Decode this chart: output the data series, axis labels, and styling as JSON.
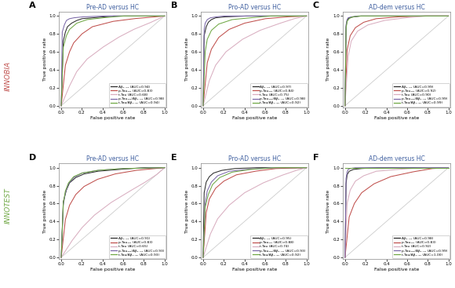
{
  "panels": [
    {
      "label": "A",
      "title": "Pre-AD versus HC",
      "row": 0,
      "col": 0,
      "curves": [
        {
          "name": "Aβ₁₋₄₂ (AUC=0.94)",
          "color": "#2b2b2b",
          "auc": 0.94,
          "fpr": [
            0,
            0.02,
            0.04,
            0.06,
            0.08,
            0.1,
            0.15,
            0.2,
            0.3,
            0.5,
            0.7,
            1.0
          ],
          "tpr": [
            0,
            0.72,
            0.82,
            0.88,
            0.9,
            0.92,
            0.95,
            0.97,
            0.98,
            1.0,
            1.0,
            1.0
          ]
        },
        {
          "name": "p-Tau₁₈₁ (AUC=0.83)",
          "color": "#c0504d",
          "auc": 0.83,
          "fpr": [
            0,
            0.04,
            0.08,
            0.12,
            0.2,
            0.3,
            0.5,
            0.7,
            0.9,
            1.0
          ],
          "tpr": [
            0,
            0.45,
            0.6,
            0.7,
            0.8,
            0.88,
            0.94,
            0.97,
            0.99,
            1.0
          ]
        },
        {
          "name": "t-Tau (AUC=0.68)",
          "color": "#d9aec0",
          "auc": 0.68,
          "fpr": [
            0,
            0.08,
            0.15,
            0.25,
            0.4,
            0.55,
            0.7,
            0.85,
            1.0
          ],
          "tpr": [
            0,
            0.22,
            0.38,
            0.52,
            0.65,
            0.76,
            0.85,
            0.92,
            1.0
          ]
        },
        {
          "name": "p-Tau₁₈₁/Aβ₁₋₄₂ (AUC=0.98)",
          "color": "#7b68a8",
          "auc": 0.98,
          "fpr": [
            0,
            0.01,
            0.03,
            0.05,
            0.08,
            0.12,
            0.2,
            0.4,
            1.0
          ],
          "tpr": [
            0,
            0.82,
            0.9,
            0.95,
            0.97,
            0.98,
            0.99,
            1.0,
            1.0
          ]
        },
        {
          "name": "t-Tau/Aβ₁₋₄₂ (AUC=0.94)",
          "color": "#70a845",
          "auc": 0.94,
          "fpr": [
            0,
            0.02,
            0.05,
            0.08,
            0.15,
            0.25,
            0.4,
            0.6,
            1.0
          ],
          "tpr": [
            0,
            0.65,
            0.78,
            0.85,
            0.92,
            0.96,
            0.98,
            1.0,
            1.0
          ]
        }
      ]
    },
    {
      "label": "B",
      "title": "Pro-AD versus HC",
      "row": 0,
      "col": 1,
      "curves": [
        {
          "name": "Aβ₁₋₄₂ (AUC=0.97)",
          "color": "#2b2b2b",
          "auc": 0.97,
          "fpr": [
            0,
            0.01,
            0.03,
            0.05,
            0.08,
            0.12,
            0.2,
            0.4,
            1.0
          ],
          "tpr": [
            0,
            0.78,
            0.88,
            0.93,
            0.96,
            0.98,
            0.99,
            1.0,
            1.0
          ]
        },
        {
          "name": "p-Tau₁₈₁ (AUC=0.84)",
          "color": "#c0504d",
          "auc": 0.84,
          "fpr": [
            0,
            0.04,
            0.08,
            0.15,
            0.25,
            0.4,
            0.6,
            0.8,
            1.0
          ],
          "tpr": [
            0,
            0.48,
            0.63,
            0.76,
            0.85,
            0.92,
            0.97,
            0.99,
            1.0
          ]
        },
        {
          "name": "t-Tau (AUC=0.75)",
          "color": "#d9aec0",
          "auc": 0.75,
          "fpr": [
            0,
            0.06,
            0.12,
            0.22,
            0.38,
            0.55,
            0.72,
            0.88,
            1.0
          ],
          "tpr": [
            0,
            0.28,
            0.45,
            0.6,
            0.74,
            0.84,
            0.91,
            0.97,
            1.0
          ]
        },
        {
          "name": "p-Tau₁₈₁/Aβ₁₋₄₂ (AUC=0.98)",
          "color": "#7b68a8",
          "auc": 0.98,
          "fpr": [
            0,
            0.01,
            0.02,
            0.04,
            0.07,
            0.12,
            0.2,
            0.4,
            1.0
          ],
          "tpr": [
            0,
            0.85,
            0.92,
            0.96,
            0.98,
            0.99,
            1.0,
            1.0,
            1.0
          ]
        },
        {
          "name": "t-Tau/Aβ₁₋₄₂ (AUC=0.92)",
          "color": "#70a845",
          "auc": 0.92,
          "fpr": [
            0,
            0.02,
            0.04,
            0.08,
            0.15,
            0.28,
            0.45,
            0.65,
            1.0
          ],
          "tpr": [
            0,
            0.6,
            0.74,
            0.84,
            0.91,
            0.96,
            0.98,
            1.0,
            1.0
          ]
        }
      ]
    },
    {
      "label": "C",
      "title": "AD-dem versus HC",
      "row": 0,
      "col": 2,
      "curves": [
        {
          "name": "Aβ₁₋₄₂ (AUC=0.99)",
          "color": "#2b2b2b",
          "auc": 0.99,
          "fpr": [
            0,
            0.01,
            0.02,
            0.04,
            0.08,
            0.15,
            0.3,
            1.0
          ],
          "tpr": [
            0,
            0.88,
            0.95,
            0.98,
            0.99,
            1.0,
            1.0,
            1.0
          ]
        },
        {
          "name": "p-Tau₁₈₁ (AUC=0.92)",
          "color": "#c0504d",
          "auc": 0.92,
          "fpr": [
            0,
            0.02,
            0.05,
            0.1,
            0.18,
            0.3,
            0.5,
            0.75,
            1.0
          ],
          "tpr": [
            0,
            0.62,
            0.78,
            0.87,
            0.93,
            0.97,
            0.99,
            1.0,
            1.0
          ]
        },
        {
          "name": "t-Tau (AUC=0.90)",
          "color": "#d9aec0",
          "auc": 0.9,
          "fpr": [
            0,
            0.03,
            0.06,
            0.12,
            0.22,
            0.38,
            0.58,
            0.78,
            1.0
          ],
          "tpr": [
            0,
            0.55,
            0.72,
            0.83,
            0.9,
            0.95,
            0.98,
            1.0,
            1.0
          ]
        },
        {
          "name": "p-Tau₁₈₁/Aβ₁₋₄₂ (AUC=0.99)",
          "color": "#7b68a8",
          "auc": 0.99,
          "fpr": [
            0,
            0.01,
            0.02,
            0.03,
            0.06,
            0.12,
            0.25,
            1.0
          ],
          "tpr": [
            0,
            0.9,
            0.96,
            0.98,
            0.99,
            1.0,
            1.0,
            1.0
          ]
        },
        {
          "name": "t-Tau/Aβ₁₋₄₂ (AUC=0.99)",
          "color": "#70a845",
          "auc": 0.99,
          "fpr": [
            0,
            0.01,
            0.02,
            0.04,
            0.07,
            0.14,
            0.28,
            1.0
          ],
          "tpr": [
            0,
            0.86,
            0.94,
            0.97,
            0.99,
            1.0,
            1.0,
            1.0
          ]
        }
      ]
    },
    {
      "label": "D",
      "title": "Pre-AD versus HC",
      "row": 1,
      "col": 0,
      "curves": [
        {
          "name": "Aβ₁₋₄₂ (AUC=0.91)",
          "color": "#2b2b2b",
          "auc": 0.91,
          "fpr": [
            0,
            0.02,
            0.05,
            0.08,
            0.14,
            0.22,
            0.35,
            0.55,
            0.8,
            1.0
          ],
          "tpr": [
            0,
            0.62,
            0.75,
            0.83,
            0.89,
            0.93,
            0.96,
            0.98,
            1.0,
            1.0
          ]
        },
        {
          "name": "p-Tau₁₈₁ (AUC=0.83)",
          "color": "#c0504d",
          "auc": 0.83,
          "fpr": [
            0,
            0.04,
            0.08,
            0.14,
            0.22,
            0.35,
            0.52,
            0.72,
            0.9,
            1.0
          ],
          "tpr": [
            0,
            0.42,
            0.58,
            0.7,
            0.79,
            0.87,
            0.93,
            0.97,
            0.99,
            1.0
          ]
        },
        {
          "name": "t-Tau (AUC=0.65)",
          "color": "#d9aec0",
          "auc": 0.65,
          "fpr": [
            0,
            0.1,
            0.2,
            0.32,
            0.48,
            0.65,
            0.8,
            0.92,
            1.0
          ],
          "tpr": [
            0,
            0.18,
            0.33,
            0.47,
            0.61,
            0.73,
            0.83,
            0.92,
            1.0
          ]
        },
        {
          "name": "p-Tau₁₈₁/Aβ₁₋₄₂ (AUC=0.93)",
          "color": "#7b68a8",
          "auc": 0.93,
          "fpr": [
            0,
            0.02,
            0.04,
            0.07,
            0.12,
            0.2,
            0.35,
            0.58,
            1.0
          ],
          "tpr": [
            0,
            0.58,
            0.72,
            0.82,
            0.89,
            0.94,
            0.97,
            0.99,
            1.0
          ]
        },
        {
          "name": "t-Tau/Aβ₁₋₄₂ (AUC=0.93)",
          "color": "#70a845",
          "auc": 0.93,
          "fpr": [
            0,
            0.02,
            0.04,
            0.07,
            0.12,
            0.2,
            0.35,
            0.58,
            1.0
          ],
          "tpr": [
            0,
            0.6,
            0.74,
            0.83,
            0.9,
            0.94,
            0.97,
            0.99,
            1.0
          ]
        }
      ]
    },
    {
      "label": "E",
      "title": "Pro-AD versus HC",
      "row": 1,
      "col": 1,
      "curves": [
        {
          "name": "Aβ₁₋₄₂ (AUC=0.95)",
          "color": "#2b2b2b",
          "auc": 0.95,
          "fpr": [
            0,
            0.01,
            0.03,
            0.06,
            0.1,
            0.18,
            0.3,
            0.5,
            1.0
          ],
          "tpr": [
            0,
            0.72,
            0.84,
            0.9,
            0.94,
            0.97,
            0.99,
            1.0,
            1.0
          ]
        },
        {
          "name": "p-Tau₁₈₁ (AUC=0.88)",
          "color": "#c0504d",
          "auc": 0.88,
          "fpr": [
            0,
            0.03,
            0.06,
            0.12,
            0.2,
            0.32,
            0.5,
            0.7,
            1.0
          ],
          "tpr": [
            0,
            0.5,
            0.65,
            0.77,
            0.85,
            0.92,
            0.96,
            0.99,
            1.0
          ]
        },
        {
          "name": "t-Tau (AUC=0.74)",
          "color": "#d9aec0",
          "auc": 0.74,
          "fpr": [
            0,
            0.07,
            0.14,
            0.25,
            0.4,
            0.58,
            0.75,
            0.9,
            1.0
          ],
          "tpr": [
            0,
            0.26,
            0.43,
            0.58,
            0.72,
            0.83,
            0.91,
            0.97,
            1.0
          ]
        },
        {
          "name": "p-Tau₁₈₁/Aβ₁₋₄₂ (AUC=0.93)",
          "color": "#7b68a8",
          "auc": 0.93,
          "fpr": [
            0,
            0.02,
            0.04,
            0.08,
            0.14,
            0.25,
            0.42,
            0.65,
            1.0
          ],
          "tpr": [
            0,
            0.6,
            0.74,
            0.84,
            0.91,
            0.96,
            0.98,
            1.0,
            1.0
          ]
        },
        {
          "name": "t-Tau/Aβ₁₋₄₂ (AUC=0.92)",
          "color": "#70a845",
          "auc": 0.92,
          "fpr": [
            0,
            0.02,
            0.05,
            0.09,
            0.16,
            0.28,
            0.45,
            0.68,
            1.0
          ],
          "tpr": [
            0,
            0.56,
            0.7,
            0.81,
            0.89,
            0.95,
            0.98,
            1.0,
            1.0
          ]
        }
      ]
    },
    {
      "label": "F",
      "title": "AD-dem versus HC",
      "row": 1,
      "col": 2,
      "curves": [
        {
          "name": "Aβ₁₋₄₂ (AUC=0.98)",
          "color": "#2b2b2b",
          "auc": 0.98,
          "fpr": [
            0,
            0.01,
            0.02,
            0.04,
            0.08,
            0.15,
            0.3,
            1.0
          ],
          "tpr": [
            0,
            0.82,
            0.92,
            0.96,
            0.98,
            0.99,
            1.0,
            1.0
          ]
        },
        {
          "name": "p-Tau₁₈₁ (AUC=0.83)",
          "color": "#c0504d",
          "auc": 0.83,
          "fpr": [
            0,
            0.04,
            0.09,
            0.16,
            0.28,
            0.44,
            0.64,
            0.84,
            1.0
          ],
          "tpr": [
            0,
            0.45,
            0.6,
            0.72,
            0.82,
            0.9,
            0.95,
            0.99,
            1.0
          ]
        },
        {
          "name": "t-Tau (AUC=0.92)",
          "color": "#d9aec0",
          "auc": 0.92,
          "fpr": [
            0,
            0.02,
            0.05,
            0.1,
            0.18,
            0.3,
            0.5,
            0.75,
            1.0
          ],
          "tpr": [
            0,
            0.6,
            0.75,
            0.85,
            0.91,
            0.96,
            0.98,
            1.0,
            1.0
          ]
        },
        {
          "name": "p-Tau₁₈₁/Aβ₁₋₄₂ (AUC=0.99)",
          "color": "#7b68a8",
          "auc": 0.99,
          "fpr": [
            0,
            0.01,
            0.02,
            0.03,
            0.05,
            0.1,
            0.22,
            1.0
          ],
          "tpr": [
            0,
            0.88,
            0.95,
            0.98,
            0.99,
            1.0,
            1.0,
            1.0
          ]
        },
        {
          "name": "t-Tau/Aβ₁₋₄₂ (AUC=1.00)",
          "color": "#70a845",
          "auc": 1.0,
          "fpr": [
            0,
            0.0,
            0.01,
            1.0
          ],
          "tpr": [
            0,
            1.0,
            1.0,
            1.0
          ]
        }
      ]
    }
  ],
  "innobia_color": "#c0504d",
  "innotest_color": "#70a845",
  "title_color": "#4060a0",
  "diagonal_color": "#cccccc",
  "bg_color": "#ffffff"
}
